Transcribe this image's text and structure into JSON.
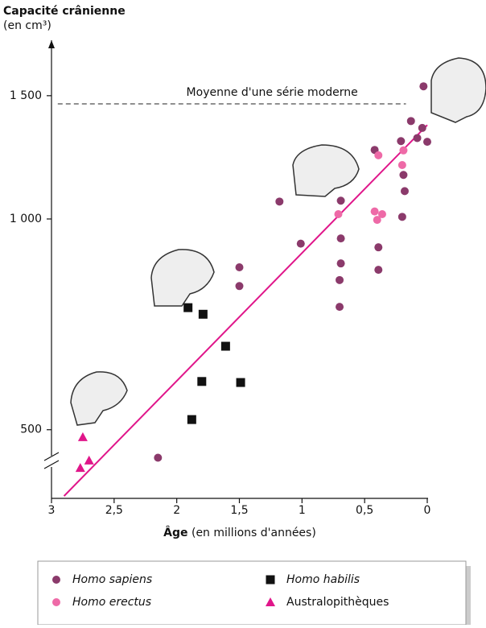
{
  "chart_data": {
    "type": "scatter",
    "y_title": "Capacité crânienne",
    "y_unit": "(en cm³)",
    "x_title": "Âge",
    "x_unit": "(en millions d'années)",
    "xlim": [
      3,
      0
    ],
    "xticks": [
      3,
      {
        "value": 2.5,
        "label": "2,5"
      },
      2,
      {
        "value": 1.5,
        "label": "1,5"
      },
      1,
      {
        "value": 0.5,
        "label": "0,5"
      },
      0
    ],
    "ylim": [
      400,
      1800
    ],
    "yticks": [
      {
        "value": 500,
        "label": "500"
      },
      {
        "value": 1000,
        "label": "1 000"
      },
      {
        "value": 1500,
        "label": "1 500"
      }
    ],
    "log_y": true,
    "series": [
      {
        "name": "Homo sapiens",
        "color": "#8b3a6b",
        "marker": "circle",
        "x": [
          0.03,
          0.13,
          0.04,
          0.08,
          0,
          0.21,
          0.19,
          0.42,
          0.18,
          0.2,
          0.69,
          1.18,
          1.01,
          0.69,
          0.39,
          0.39,
          0.69,
          0.7,
          1.5,
          1.5,
          0.7,
          2.15
        ],
        "values": [
          1547,
          1380,
          1349,
          1305,
          1289,
          1292,
          1156,
          1255,
          1096,
          1007,
          1062,
          1059,
          922,
          938,
          911,
          846,
          864,
          818,
          853,
          802,
          749,
          456
        ]
      },
      {
        "name": "Homo erectus",
        "color": "#ee6aa7",
        "marker": "circle",
        "x": [
          0.39,
          0.2,
          0.19,
          0.71,
          0.42,
          0.36,
          0.4
        ],
        "values": [
          1233,
          1194,
          1253,
          1016,
          1025,
          1016,
          997
        ]
      },
      {
        "name": "Homo habilis",
        "color": "#111111",
        "marker": "square",
        "x": [
          1.91,
          1.79,
          1.61,
          1.8,
          1.49,
          1.88
        ],
        "values": [
          747,
          731,
          658,
          586,
          584,
          517
        ]
      },
      {
        "name": "Australopithèques",
        "color": "#e0168a",
        "marker": "triangle",
        "x": [
          2.75,
          2.7,
          2.77
        ],
        "values": [
          488,
          452,
          441
        ]
      }
    ],
    "trend": {
      "color": "#e0168a",
      "x": [
        2.9,
        0
      ],
      "values": [
        402,
        1362
      ]
    },
    "reference": {
      "label": "Moyenne d'une série moderne",
      "value": 1460,
      "x": [
        2.95,
        0.17
      ]
    }
  }
}
